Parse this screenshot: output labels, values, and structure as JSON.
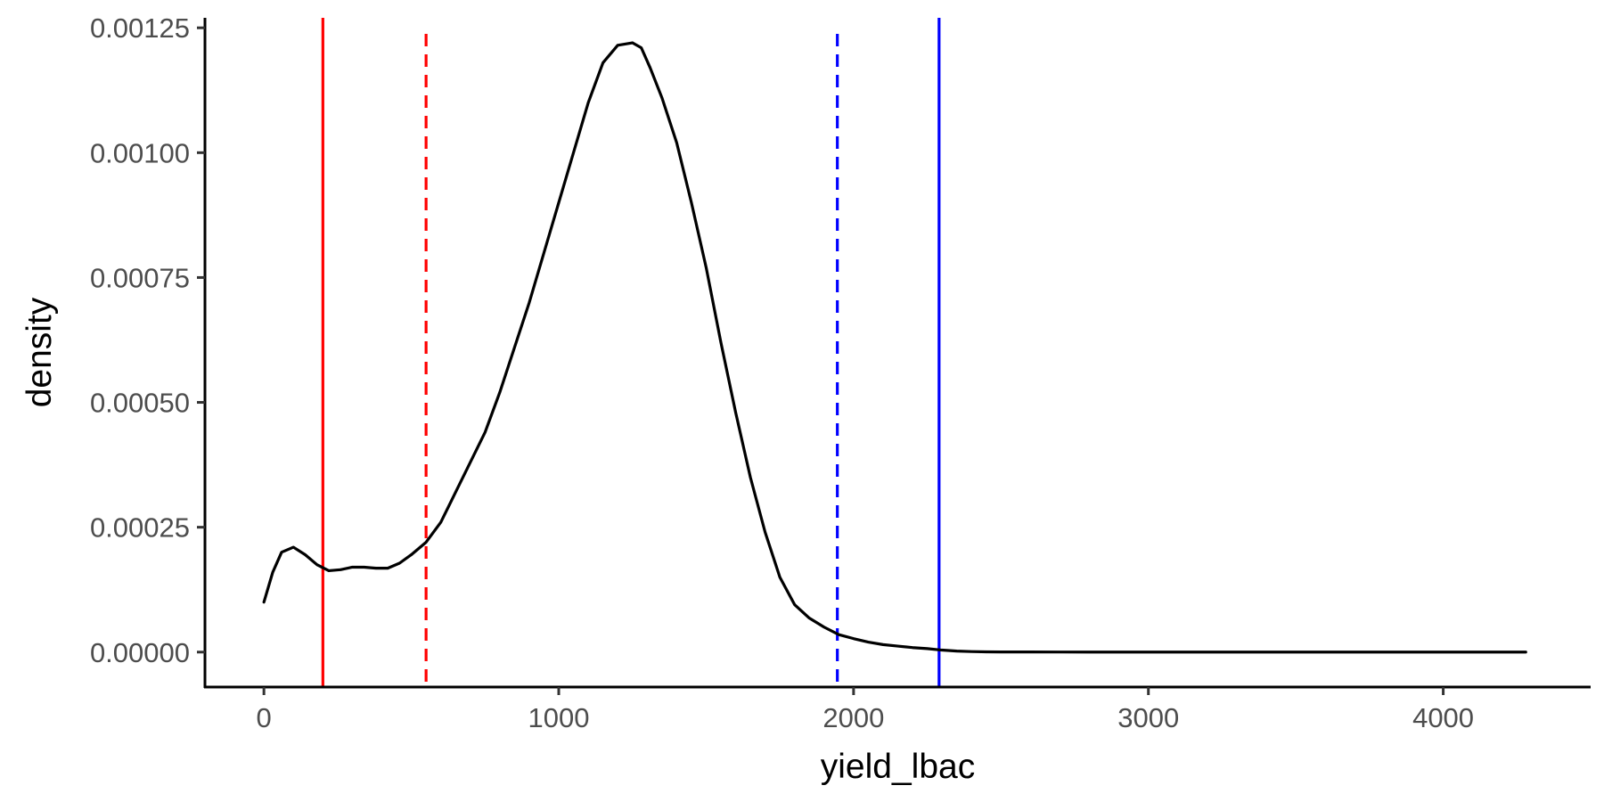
{
  "chart_data": {
    "type": "line",
    "title": "",
    "xlabel": "yield_lbac",
    "ylabel": "density",
    "xlim": [
      -200,
      4500
    ],
    "ylim": [
      -7e-05,
      0.00127
    ],
    "x_ticks": [
      0,
      1000,
      2000,
      3000,
      4000
    ],
    "x_tick_labels": [
      "0",
      "1000",
      "2000",
      "3000",
      "4000"
    ],
    "y_ticks": [
      0,
      0.00025,
      0.0005,
      0.00075,
      0.001,
      0.00125
    ],
    "y_tick_labels": [
      "0.00000",
      "0.00025",
      "0.00050",
      "0.00075",
      "0.00100",
      "0.00125"
    ],
    "grid": false,
    "series": [
      {
        "color": "#000000",
        "x": [
          0,
          30,
          60,
          100,
          140,
          180,
          220,
          260,
          300,
          340,
          380,
          420,
          460,
          500,
          550,
          600,
          650,
          700,
          750,
          800,
          850,
          900,
          950,
          1000,
          1050,
          1100,
          1150,
          1200,
          1250,
          1280,
          1310,
          1350,
          1400,
          1450,
          1500,
          1550,
          1600,
          1650,
          1700,
          1750,
          1800,
          1850,
          1900,
          1950,
          2000,
          2050,
          2100,
          2150,
          2200,
          2250,
          2300,
          2350,
          2400,
          2450,
          2500,
          2600,
          2700,
          2800,
          3000,
          3200,
          3400,
          3600,
          3800,
          4000,
          4200,
          4280
        ],
        "y": [
          0.0001,
          0.00016,
          0.0002,
          0.00021,
          0.000195,
          0.000175,
          0.000163,
          0.000165,
          0.00017,
          0.00017,
          0.000168,
          0.000168,
          0.000178,
          0.000195,
          0.00022,
          0.00026,
          0.00032,
          0.00038,
          0.00044,
          0.00052,
          0.00061,
          0.0007,
          0.0008,
          0.0009,
          0.001,
          0.0011,
          0.00118,
          0.001215,
          0.00122,
          0.00121,
          0.00117,
          0.00111,
          0.00102,
          0.0009,
          0.00077,
          0.00062,
          0.00048,
          0.00035,
          0.00024,
          0.00015,
          9.5e-05,
          6.8e-05,
          5e-05,
          3.5e-05,
          2.7e-05,
          2e-05,
          1.5e-05,
          1.2e-05,
          9e-06,
          7e-06,
          4e-06,
          2e-06,
          1e-06,
          5e-07,
          3e-07,
          2e-07,
          1e-07,
          0,
          0,
          0,
          0,
          0,
          0,
          0,
          0,
          0
        ]
      }
    ],
    "vlines": [
      {
        "x": 200,
        "color": "#ff0000",
        "style": "solid"
      },
      {
        "x": 550,
        "color": "#ff0000",
        "style": "dashed"
      },
      {
        "x": 1945,
        "color": "#0000ff",
        "style": "dashed"
      },
      {
        "x": 2290,
        "color": "#0000ff",
        "style": "solid"
      }
    ]
  }
}
